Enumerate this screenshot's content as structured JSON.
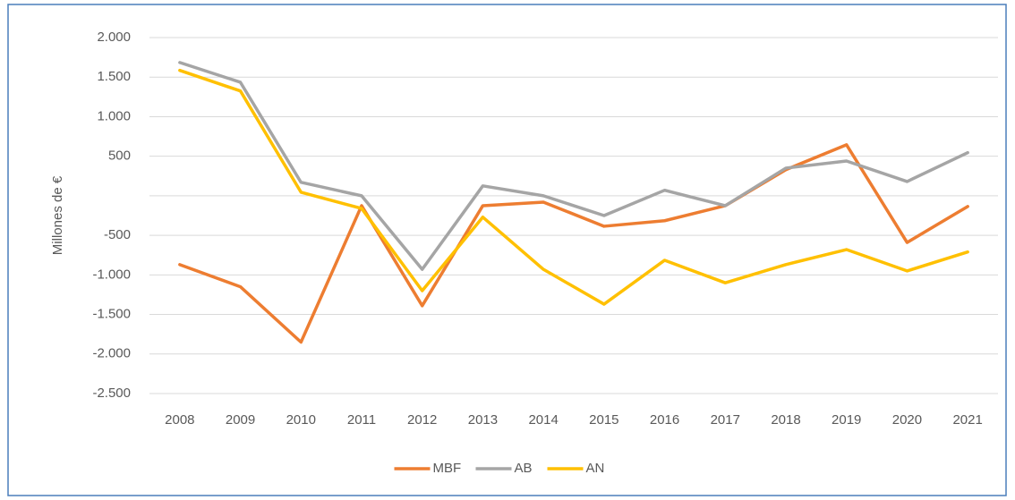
{
  "chart_data": {
    "type": "line",
    "y_label": "Millones de €",
    "categories": [
      "2008",
      "2009",
      "2010",
      "2011",
      "2012",
      "2013",
      "2014",
      "2015",
      "2016",
      "2017",
      "2018",
      "2019",
      "2020",
      "2021"
    ],
    "series": [
      {
        "name": "MBF",
        "color": "#ed7d31",
        "values": [
          -870,
          -1150,
          -1850,
          -125,
          -1390,
          -125,
          -80,
          -385,
          -315,
          -125,
          330,
          645,
          -590,
          -135
        ]
      },
      {
        "name": "AB",
        "color": "#a5a5a5",
        "values": [
          1685,
          1435,
          170,
          0,
          -930,
          125,
          0,
          -250,
          70,
          -125,
          350,
          440,
          180,
          545
        ]
      },
      {
        "name": "AN",
        "color": "#ffc000",
        "values": [
          1585,
          1325,
          45,
          -160,
          -1200,
          -270,
          -930,
          -1370,
          -815,
          -1100,
          -870,
          -680,
          -950,
          -710
        ]
      }
    ],
    "ylim": [
      -2500,
      2000
    ],
    "yticks": [
      {
        "value": 2000,
        "label": "2.000"
      },
      {
        "value": 1500,
        "label": "1.500"
      },
      {
        "value": 1000,
        "label": "1.000"
      },
      500,
      {
        "value": 0,
        "label": null
      },
      -500,
      {
        "value": -1000,
        "label": "-1.000"
      },
      {
        "value": -1500,
        "label": "-1.500"
      },
      {
        "value": -2000,
        "label": "-2.000"
      },
      {
        "value": -2500,
        "label": "-2.500"
      }
    ],
    "grid": true,
    "legend": "bottom"
  }
}
